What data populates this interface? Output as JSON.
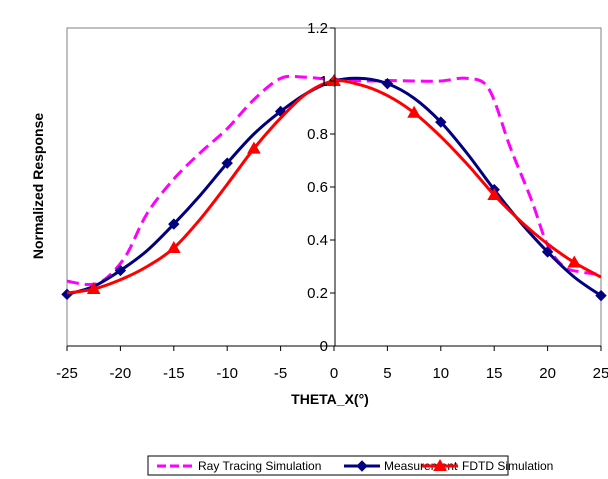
{
  "chart_data": {
    "type": "line",
    "title": "",
    "xlabel": "THETA_X(°)",
    "ylabel": "Normalized Response",
    "xlim": [
      -25,
      25
    ],
    "ylim": [
      0,
      1.2
    ],
    "x_ticks": [
      "-25",
      "-20",
      "-15",
      "-10",
      "-5",
      "0",
      "5",
      "10",
      "15",
      "20",
      "25"
    ],
    "y_ticks": [
      "0",
      "0.2",
      "0.4",
      "0.6",
      "0.8",
      "1",
      "1.2"
    ],
    "grid": false,
    "legend_position": "bottom",
    "series": [
      {
        "name": "Ray Tracing Simulation",
        "color": "#ff00ff",
        "line_style": "dashed",
        "marker": "none",
        "points": [
          [
            -25,
            0.245
          ],
          [
            -23,
            0.232
          ],
          [
            -21.5,
            0.25
          ],
          [
            -19.5,
            0.34
          ],
          [
            -17.5,
            0.5
          ],
          [
            -15,
            0.63
          ],
          [
            -12.5,
            0.73
          ],
          [
            -10,
            0.82
          ],
          [
            -7.5,
            0.93
          ],
          [
            -5,
            1.01
          ],
          [
            -3,
            1.015
          ],
          [
            0,
            1.005
          ],
          [
            3,
            1.0
          ],
          [
            5,
            1.002
          ],
          [
            7.5,
            1.0
          ],
          [
            10,
            1.0
          ],
          [
            12.5,
            1.01
          ],
          [
            14.5,
            0.97
          ],
          [
            16.5,
            0.75
          ],
          [
            18.5,
            0.55
          ],
          [
            20,
            0.38
          ],
          [
            21.5,
            0.3
          ],
          [
            23,
            0.28
          ],
          [
            25,
            0.27
          ]
        ]
      },
      {
        "name": "Measurement",
        "color": "#000080",
        "line_style": "solid",
        "marker": "diamond",
        "points": [
          [
            -25,
            0.195
          ],
          [
            -20,
            0.285
          ],
          [
            -15,
            0.46
          ],
          [
            -10,
            0.69
          ],
          [
            -5,
            0.885
          ],
          [
            0,
            1.0
          ],
          [
            5,
            0.99
          ],
          [
            10,
            0.845
          ],
          [
            15,
            0.59
          ],
          [
            20,
            0.355
          ],
          [
            25,
            0.19
          ]
        ],
        "curve": [
          [
            -25,
            0.195
          ],
          [
            -22.5,
            0.225
          ],
          [
            -20,
            0.285
          ],
          [
            -17.5,
            0.36
          ],
          [
            -15,
            0.46
          ],
          [
            -12.5,
            0.57
          ],
          [
            -10,
            0.69
          ],
          [
            -7.5,
            0.8
          ],
          [
            -5,
            0.885
          ],
          [
            -2.5,
            0.955
          ],
          [
            0,
            1.0
          ],
          [
            2.5,
            1.01
          ],
          [
            5,
            0.99
          ],
          [
            7.5,
            0.935
          ],
          [
            10,
            0.845
          ],
          [
            12.5,
            0.725
          ],
          [
            15,
            0.59
          ],
          [
            17.5,
            0.465
          ],
          [
            20,
            0.355
          ],
          [
            22.5,
            0.26
          ],
          [
            25,
            0.19
          ]
        ]
      },
      {
        "name": "FDTD Simulation",
        "color": "#ff0000",
        "line_style": "solid",
        "marker": "triangle",
        "points": [
          [
            -22.5,
            0.215
          ],
          [
            -15,
            0.37
          ],
          [
            -7.5,
            0.745
          ],
          [
            0,
            1.0
          ],
          [
            7.5,
            0.88
          ],
          [
            15,
            0.57
          ],
          [
            22.5,
            0.315
          ]
        ],
        "curve": [
          [
            -25,
            0.2
          ],
          [
            -22.5,
            0.215
          ],
          [
            -20,
            0.25
          ],
          [
            -17.5,
            0.3
          ],
          [
            -15,
            0.37
          ],
          [
            -12.5,
            0.48
          ],
          [
            -10,
            0.61
          ],
          [
            -7.5,
            0.745
          ],
          [
            -5,
            0.86
          ],
          [
            -2.5,
            0.955
          ],
          [
            0,
            1.0
          ],
          [
            2.5,
            0.985
          ],
          [
            5,
            0.945
          ],
          [
            7.5,
            0.88
          ],
          [
            10,
            0.79
          ],
          [
            12.5,
            0.685
          ],
          [
            15,
            0.57
          ],
          [
            17.5,
            0.47
          ],
          [
            20,
            0.385
          ],
          [
            22.5,
            0.315
          ],
          [
            25,
            0.26
          ]
        ]
      }
    ]
  }
}
